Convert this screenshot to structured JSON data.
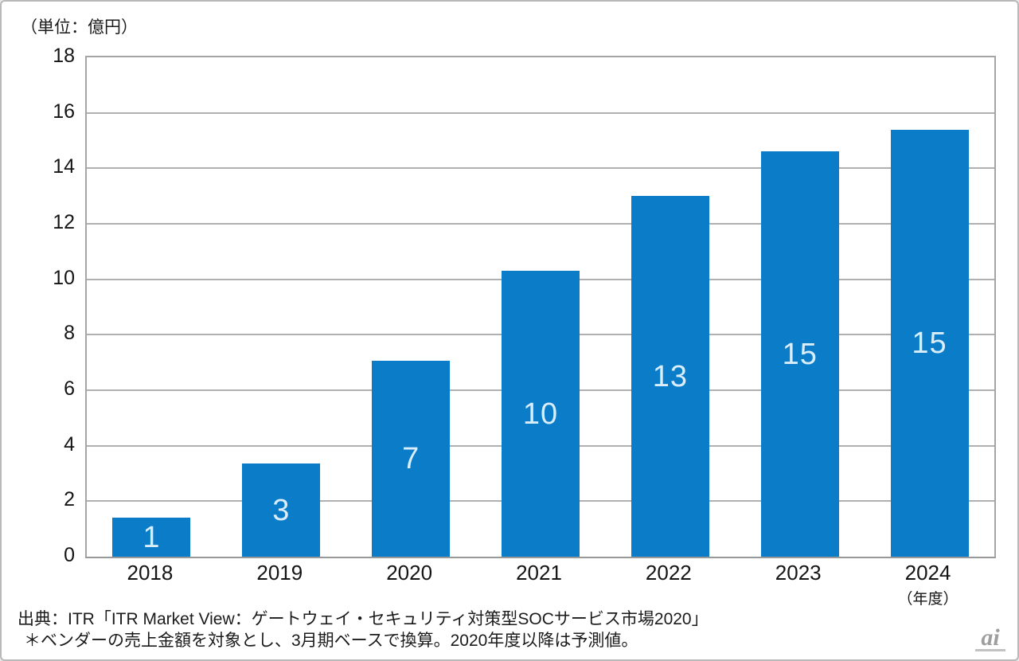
{
  "chart_data": {
    "type": "bar",
    "title": "",
    "unit_label": "（単位：億円）",
    "categories": [
      "2018",
      "2019",
      "2020",
      "2021",
      "2022",
      "2023",
      "2024"
    ],
    "values": [
      1.4,
      3.35,
      7.05,
      10.3,
      13.0,
      14.6,
      15.4
    ],
    "bar_labels": [
      "1",
      "3",
      "7",
      "10",
      "13",
      "15",
      "15"
    ],
    "x_axis_note": "（年度）",
    "xlabel": "",
    "ylabel": "",
    "ylim": [
      0,
      18
    ],
    "yticks": [
      0,
      2,
      4,
      6,
      8,
      10,
      12,
      14,
      16,
      18
    ],
    "grid": true,
    "legend_position": "none",
    "bar_color": "#0b7dc8",
    "bar_label_color": "#d9edfb",
    "grid_color": "#b0b0b0",
    "axis_color": "#a5a5a5"
  },
  "footer": {
    "source_line": "出典：ITR「ITR Market View：ゲートウェイ・セキュリティ対策型SOCサービス市場2020」",
    "note_line": "＊ベンダーの売上金額を対象とし、3月期ベースで換算。2020年度以降は予測値。"
  },
  "logo": {
    "text": "ai"
  }
}
